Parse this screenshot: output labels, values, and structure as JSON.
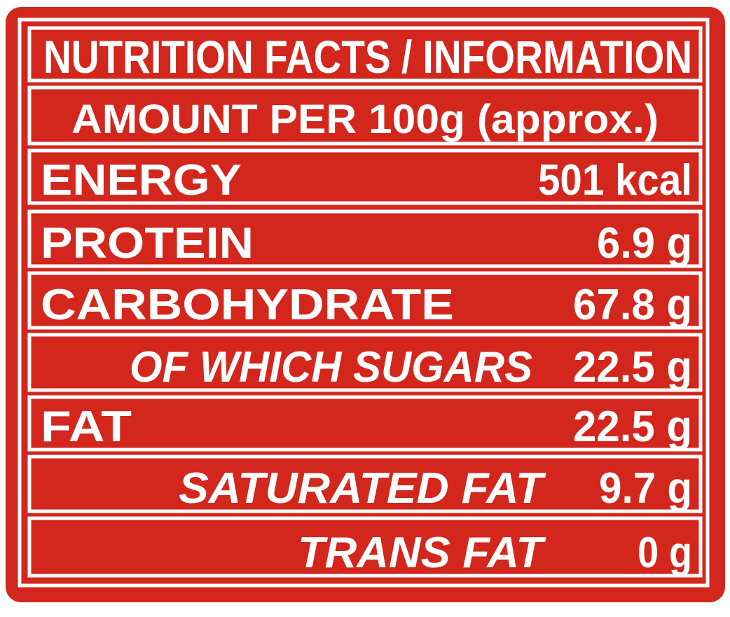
{
  "header": {
    "title": "NUTRITION FACTS / INFORMATION",
    "subtitle": "AMOUNT PER 100g (approx.)"
  },
  "rows": [
    {
      "label": "ENERGY",
      "value": "501 kcal"
    },
    {
      "label": "PROTEIN",
      "value": "6.9 g"
    },
    {
      "label": "CARBOHYDRATE",
      "value": "67.8 g"
    },
    {
      "label": "OF WHICH SUGARS",
      "value": "22.5 g"
    },
    {
      "label": "FAT",
      "value": "22.5 g"
    },
    {
      "label": "SATURATED FAT",
      "value": "9.7 g"
    },
    {
      "label": "TRANS FAT",
      "value": "0 g"
    }
  ]
}
